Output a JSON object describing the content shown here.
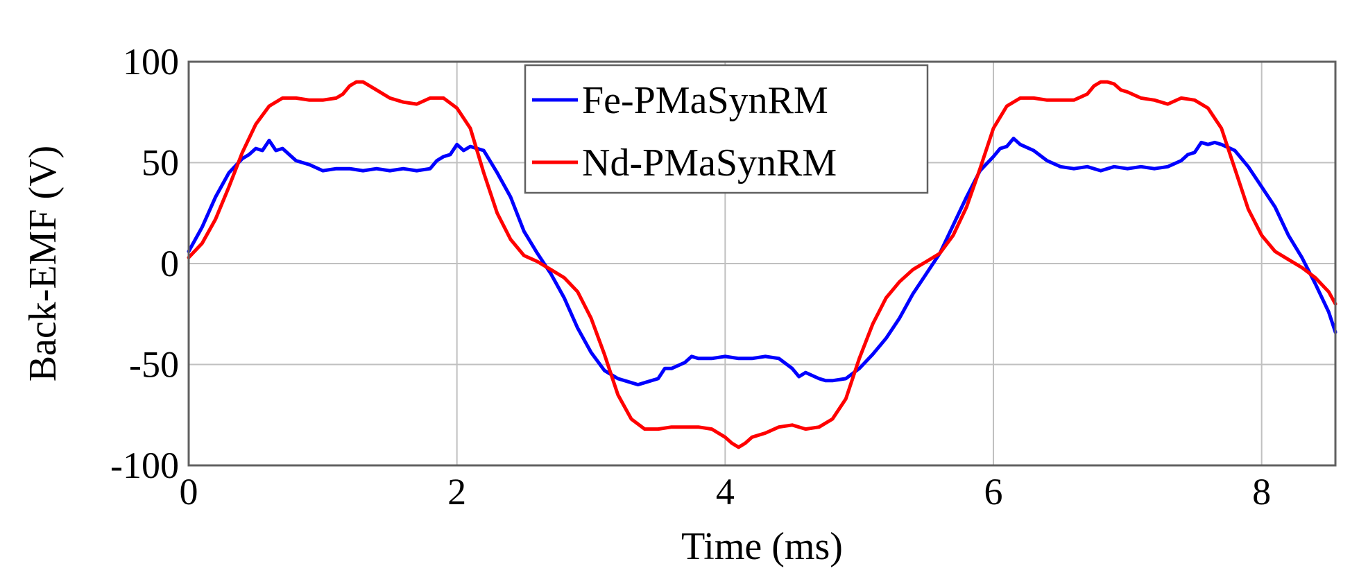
{
  "chart_data": {
    "type": "line",
    "title": "",
    "xlabel": "Time (ms)",
    "ylabel": "Back-EMF (V)",
    "xlim": [
      0,
      8.55
    ],
    "ylim": [
      -100,
      100
    ],
    "x_ticks": [
      0,
      2,
      4,
      6,
      8
    ],
    "y_ticks": [
      100,
      50,
      0,
      -50,
      -100
    ],
    "x_tick_labels": [
      "0",
      "2",
      "4",
      "6",
      "8"
    ],
    "y_tick_labels": [
      "100",
      "50",
      "0",
      "-50",
      "-100"
    ],
    "grid": true,
    "legend_position": "top-center",
    "series": [
      {
        "name": "Fe-PMaSynRM",
        "color": "#0000ff",
        "x": [
          0,
          0.1,
          0.2,
          0.3,
          0.4,
          0.45,
          0.5,
          0.55,
          0.6,
          0.65,
          0.7,
          0.8,
          0.9,
          1.0,
          1.1,
          1.2,
          1.3,
          1.4,
          1.5,
          1.6,
          1.7,
          1.8,
          1.85,
          1.9,
          1.95,
          2.0,
          2.05,
          2.1,
          2.15,
          2.2,
          2.3,
          2.4,
          2.5,
          2.6,
          2.7,
          2.8,
          2.9,
          3.0,
          3.1,
          3.2,
          3.3,
          3.35,
          3.4,
          3.5,
          3.55,
          3.6,
          3.7,
          3.75,
          3.8,
          3.9,
          4.0,
          4.1,
          4.2,
          4.3,
          4.4,
          4.5,
          4.55,
          4.6,
          4.7,
          4.75,
          4.8,
          4.9,
          5.0,
          5.1,
          5.2,
          5.3,
          5.4,
          5.5,
          5.6,
          5.7,
          5.8,
          5.9,
          6.0,
          6.05,
          6.1,
          6.15,
          6.2,
          6.3,
          6.4,
          6.5,
          6.6,
          6.7,
          6.8,
          6.9,
          7.0,
          7.1,
          7.2,
          7.3,
          7.4,
          7.45,
          7.5,
          7.55,
          7.6,
          7.65,
          7.7,
          7.8,
          7.9,
          8.0,
          8.1,
          8.2,
          8.3,
          8.4,
          8.5,
          8.55
        ],
        "y": [
          6,
          18,
          33,
          45,
          52,
          54,
          57,
          56,
          61,
          56,
          57,
          51,
          49,
          46,
          47,
          47,
          46,
          47,
          46,
          47,
          46,
          47,
          51,
          53,
          54,
          59,
          56,
          58,
          57,
          56,
          45,
          33,
          16,
          5,
          -5,
          -17,
          -32,
          -44,
          -53,
          -57,
          -59,
          -60,
          -59,
          -57,
          -52,
          -52,
          -49,
          -46,
          -47,
          -47,
          -46,
          -47,
          -47,
          -46,
          -47,
          -52,
          -56,
          -54,
          -57,
          -58,
          -58,
          -57,
          -52,
          -45,
          -37,
          -27,
          -15,
          -5,
          5,
          19,
          33,
          46,
          53,
          57,
          58,
          62,
          59,
          56,
          51,
          48,
          47,
          48,
          46,
          48,
          47,
          48,
          47,
          48,
          51,
          54,
          55,
          60,
          59,
          60,
          59,
          56,
          48,
          38,
          28,
          14,
          3,
          -10,
          -24,
          -34
        ]
      },
      {
        "name": "Nd-PMaSynRM",
        "color": "#ff0000",
        "x": [
          0,
          0.1,
          0.2,
          0.3,
          0.4,
          0.5,
          0.6,
          0.7,
          0.8,
          0.9,
          1.0,
          1.1,
          1.15,
          1.2,
          1.25,
          1.3,
          1.35,
          1.4,
          1.5,
          1.6,
          1.7,
          1.8,
          1.9,
          2.0,
          2.1,
          2.2,
          2.3,
          2.4,
          2.5,
          2.6,
          2.7,
          2.8,
          2.9,
          3.0,
          3.1,
          3.2,
          3.3,
          3.4,
          3.5,
          3.6,
          3.7,
          3.8,
          3.9,
          4.0,
          4.05,
          4.1,
          4.15,
          4.2,
          4.3,
          4.4,
          4.5,
          4.6,
          4.7,
          4.8,
          4.9,
          5.0,
          5.1,
          5.2,
          5.3,
          5.4,
          5.5,
          5.6,
          5.7,
          5.8,
          5.9,
          6.0,
          6.1,
          6.2,
          6.3,
          6.4,
          6.5,
          6.6,
          6.7,
          6.75,
          6.8,
          6.85,
          6.9,
          6.95,
          7.0,
          7.1,
          7.2,
          7.3,
          7.4,
          7.5,
          7.6,
          7.7,
          7.8,
          7.9,
          8.0,
          8.1,
          8.2,
          8.3,
          8.4,
          8.5,
          8.55
        ],
        "y": [
          3,
          10,
          22,
          38,
          55,
          69,
          78,
          82,
          82,
          81,
          81,
          82,
          84,
          88,
          90,
          90,
          88,
          86,
          82,
          80,
          79,
          82,
          82,
          77,
          67,
          45,
          25,
          12,
          4,
          1,
          -3,
          -7,
          -14,
          -27,
          -45,
          -65,
          -77,
          -82,
          -82,
          -81,
          -81,
          -81,
          -82,
          -86,
          -89,
          -91,
          -89,
          -86,
          -84,
          -81,
          -80,
          -82,
          -81,
          -77,
          -67,
          -47,
          -30,
          -17,
          -9,
          -3,
          1,
          5,
          14,
          28,
          47,
          67,
          78,
          82,
          82,
          81,
          81,
          81,
          84,
          88,
          90,
          90,
          89,
          86,
          85,
          82,
          81,
          79,
          82,
          81,
          77,
          67,
          47,
          27,
          14,
          6,
          2,
          -2,
          -7,
          -14,
          -20
        ]
      }
    ]
  }
}
